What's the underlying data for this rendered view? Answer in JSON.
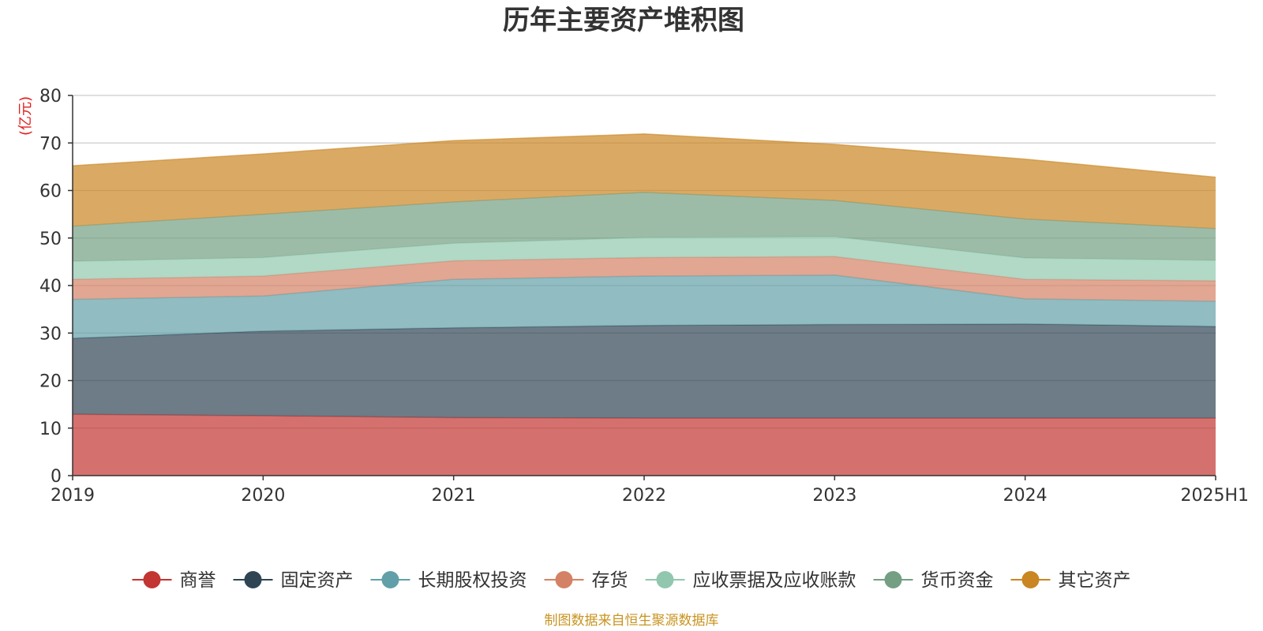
{
  "chart_data": {
    "type": "area",
    "stacked": true,
    "title": "历年主要资产堆积图",
    "ylabel": "(亿元)",
    "xlabel": "",
    "categories": [
      "2019",
      "2020",
      "2021",
      "2022",
      "2023",
      "2024",
      "2025H1"
    ],
    "ylim": [
      0,
      80
    ],
    "yticks": [
      0,
      10,
      20,
      30,
      40,
      50,
      60,
      70,
      80
    ],
    "grid": true,
    "legend_position": "bottom",
    "series": [
      {
        "name": "商誉",
        "color": "#c23531",
        "values": [
          12.9,
          12.6,
          12.2,
          12.1,
          12.1,
          12.1,
          12.1
        ]
      },
      {
        "name": "固定资产",
        "color": "#2f4554",
        "values": [
          16.0,
          17.8,
          18.9,
          19.5,
          19.7,
          19.8,
          19.3
        ]
      },
      {
        "name": "长期股权投资",
        "color": "#61a0a8",
        "values": [
          8.2,
          7.4,
          10.2,
          10.4,
          10.4,
          5.3,
          5.3
        ]
      },
      {
        "name": "存货",
        "color": "#d48265",
        "values": [
          4.2,
          4.2,
          3.9,
          3.9,
          3.9,
          4.1,
          4.3
        ]
      },
      {
        "name": "应收票据及应收账款",
        "color": "#91c7ae",
        "values": [
          3.8,
          3.9,
          3.7,
          4.2,
          4.2,
          4.5,
          4.3
        ]
      },
      {
        "name": "货币资金",
        "color": "#749f83",
        "values": [
          7.4,
          9.1,
          8.7,
          9.5,
          7.6,
          8.2,
          6.7
        ]
      },
      {
        "name": "其它资产",
        "color": "#ca8622",
        "values": [
          12.7,
          12.7,
          12.9,
          12.3,
          11.8,
          12.6,
          10.8
        ]
      }
    ]
  },
  "source_text": "制图数据来自恒生聚源数据库"
}
